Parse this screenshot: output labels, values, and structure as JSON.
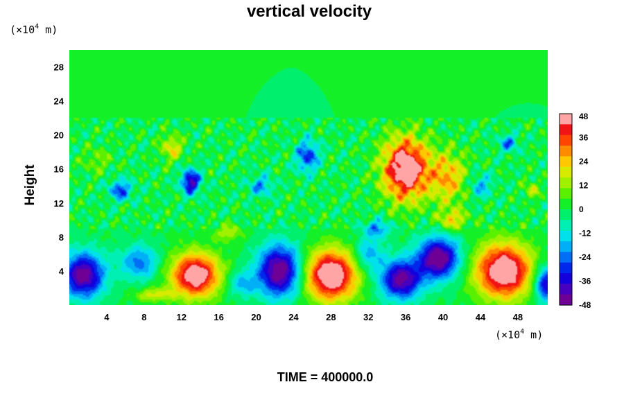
{
  "chart_data": {
    "type": "heatmap",
    "title": "vertical velocity",
    "ylabel": "Height",
    "x_unit": {
      "prefix": "(×10",
      "exp": "4",
      "suffix": " m)"
    },
    "y_unit": {
      "prefix": "(×10",
      "exp": "4",
      "suffix": " m)"
    },
    "xlim": [
      0,
      51.2
    ],
    "ylim": [
      0,
      30
    ],
    "x_ticks": [
      4,
      8,
      12,
      16,
      20,
      24,
      28,
      32,
      36,
      40,
      44,
      48
    ],
    "y_ticks": [
      4,
      8,
      12,
      16,
      20,
      24,
      28
    ],
    "colorbar": {
      "range": [
        -48,
        48
      ],
      "ticks": [
        48,
        36,
        24,
        12,
        0,
        -12,
        -24,
        -36,
        -48
      ]
    },
    "features": [
      {
        "x": 1.5,
        "y": 3.5,
        "amp": -48,
        "sx": 2.2,
        "sy": 2.6
      },
      {
        "x": 7.5,
        "y": 5.0,
        "amp": -24,
        "sx": 2.0,
        "sy": 2.0
      },
      {
        "x": 13.5,
        "y": 3.5,
        "amp": 52,
        "sx": 2.6,
        "sy": 2.6
      },
      {
        "x": 22.5,
        "y": 4.0,
        "amp": -50,
        "sx": 2.3,
        "sy": 3.0
      },
      {
        "x": 28.0,
        "y": 3.5,
        "amp": 55,
        "sx": 2.8,
        "sy": 3.0
      },
      {
        "x": 35.5,
        "y": 3.0,
        "amp": -46,
        "sx": 2.2,
        "sy": 2.3
      },
      {
        "x": 39.5,
        "y": 5.5,
        "amp": -50,
        "sx": 2.2,
        "sy": 2.4
      },
      {
        "x": 46.5,
        "y": 4.0,
        "amp": 55,
        "sx": 3.0,
        "sy": 3.2
      },
      {
        "x": 51.0,
        "y": 2.5,
        "amp": -40,
        "sx": 1.2,
        "sy": 2.0
      },
      {
        "x": 36.0,
        "y": 16.0,
        "amp": 55,
        "sx": 2.4,
        "sy": 3.6
      },
      {
        "x": 40.5,
        "y": 15.0,
        "amp": 26,
        "sx": 2.0,
        "sy": 3.0
      },
      {
        "x": 13.0,
        "y": 14.5,
        "amp": -42,
        "sx": 1.0,
        "sy": 1.4
      },
      {
        "x": 5.5,
        "y": 13.5,
        "amp": -28,
        "sx": 1.2,
        "sy": 1.2
      },
      {
        "x": 25.5,
        "y": 17.5,
        "amp": -30,
        "sx": 1.2,
        "sy": 1.8
      },
      {
        "x": 20.5,
        "y": 14.0,
        "amp": -20,
        "sx": 1.3,
        "sy": 1.2
      },
      {
        "x": 11.0,
        "y": 18.5,
        "amp": 20,
        "sx": 1.2,
        "sy": 1.5
      },
      {
        "x": 3.0,
        "y": 17.0,
        "amp": 10,
        "sx": 1.5,
        "sy": 1.5
      },
      {
        "x": 33.0,
        "y": 9.0,
        "amp": -22,
        "sx": 1.4,
        "sy": 1.0
      },
      {
        "x": 44.0,
        "y": 14.0,
        "amp": -18,
        "sx": 1.2,
        "sy": 1.4
      },
      {
        "x": 47.0,
        "y": 19.0,
        "amp": -22,
        "sx": 1.0,
        "sy": 1.0
      },
      {
        "x": 17.0,
        "y": 8.5,
        "amp": 14,
        "sx": 1.6,
        "sy": 1.0
      },
      {
        "x": 32.0,
        "y": 6.0,
        "amp": -20,
        "sx": 1.5,
        "sy": 2.0
      },
      {
        "x": 9.0,
        "y": 1.2,
        "amp": 18,
        "sx": 2.0,
        "sy": 0.8
      },
      {
        "x": 18.5,
        "y": 2.5,
        "amp": -18,
        "sx": 1.5,
        "sy": 1.5
      },
      {
        "x": 41.0,
        "y": 10.0,
        "amp": 22,
        "sx": 1.5,
        "sy": 1.2
      },
      {
        "x": 49.5,
        "y": 13.5,
        "amp": 16,
        "sx": 0.8,
        "sy": 1.0
      }
    ],
    "annotation": {
      "label": "TIME = ",
      "value": "400000.0"
    }
  }
}
